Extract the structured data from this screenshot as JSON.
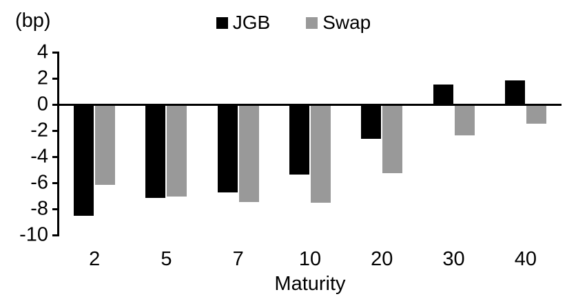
{
  "chart_data": {
    "type": "bar",
    "title": "",
    "unit_label": "(bp)",
    "xlabel": "Maturity",
    "categories": [
      "2",
      "5",
      "7",
      "10",
      "20",
      "30",
      "40"
    ],
    "series": [
      {
        "name": "JGB",
        "color": "#000000",
        "values": [
          -8.6,
          -7.2,
          -6.8,
          -5.4,
          -2.7,
          1.6,
          1.9
        ]
      },
      {
        "name": "Swap",
        "color": "#999999",
        "values": [
          -6.2,
          -7.1,
          -7.5,
          -7.6,
          -5.3,
          -2.4,
          -1.5
        ]
      }
    ],
    "ylim": [
      -10,
      4
    ],
    "yticks": [
      4,
      2,
      0,
      -2,
      -4,
      -6,
      -8,
      -10
    ],
    "grid": false,
    "legend_position": "top-center",
    "axis_color": "#000000",
    "background_color": "#ffffff"
  }
}
